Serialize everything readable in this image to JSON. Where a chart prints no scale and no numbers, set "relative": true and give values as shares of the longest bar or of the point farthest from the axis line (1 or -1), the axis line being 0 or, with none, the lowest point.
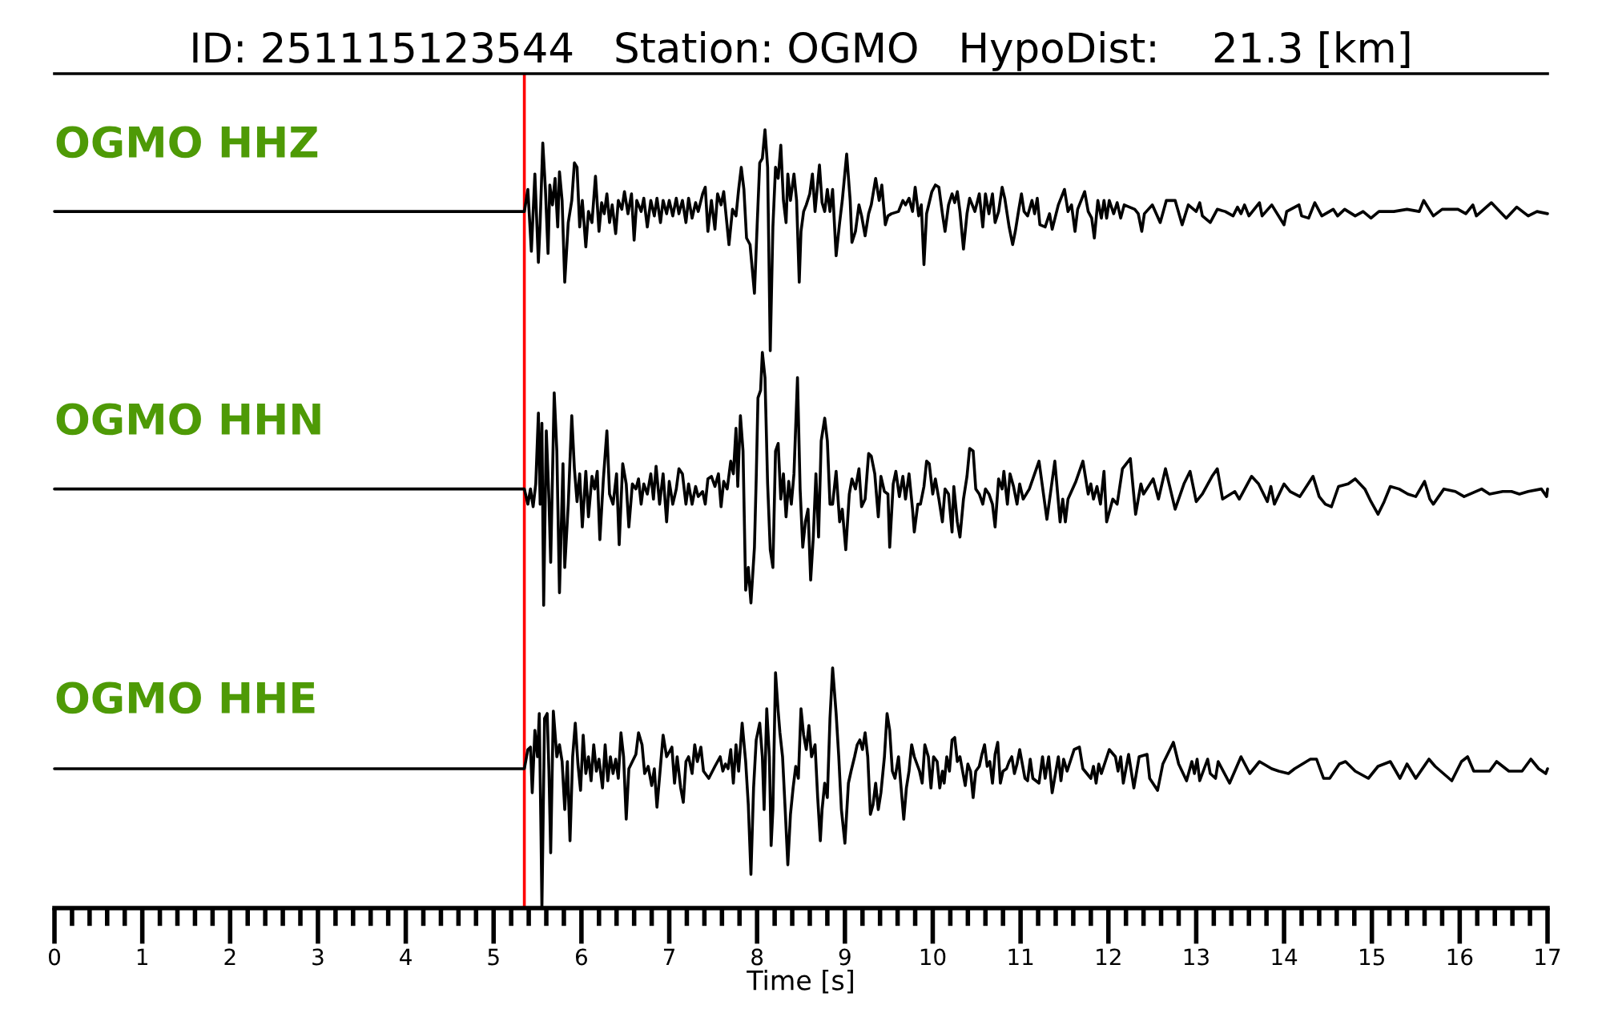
{
  "chart_data": [
    {
      "type": "line",
      "title": "ID: 251115123544   Station: OGMO   HypoDist:    21.3 [km]",
      "relative": true,
      "xlim": [
        0,
        17
      ],
      "tick_labels": false,
      "ref_lines": [
        {
          "axis": "x",
          "value": 5.35,
          "color": "#ff0000"
        }
      ],
      "series": [
        {
          "name": "OGMO HHZ",
          "color": "#000000",
          "x": [
            0,
            1.5,
            3,
            4.5,
            5.35,
            5.39,
            5.43,
            5.47,
            5.51,
            5.53,
            5.56,
            5.59,
            5.62,
            5.64,
            5.67,
            5.7,
            5.73,
            5.75,
            5.78,
            5.81,
            5.85,
            5.89,
            5.92,
            5.95,
            5.98,
            6.01,
            6.05,
            6.08,
            6.12,
            6.16,
            6.2,
            6.23,
            6.26,
            6.29,
            6.32,
            6.35,
            6.39,
            6.42,
            6.46,
            6.49,
            6.53,
            6.57,
            6.6,
            6.63,
            6.68,
            6.71,
            6.75,
            6.79,
            6.83,
            6.86,
            6.9,
            6.93,
            6.97,
            7.0,
            7.04,
            7.08,
            7.11,
            7.15,
            7.19,
            7.22,
            7.26,
            7.3,
            7.33,
            7.38,
            7.41,
            7.44,
            7.48,
            7.52,
            7.55,
            7.59,
            7.62,
            7.65,
            7.68,
            7.72,
            7.76,
            7.79,
            7.82,
            7.85,
            7.88,
            7.92,
            7.97,
            8.0,
            8.03,
            8.06,
            8.09,
            8.12,
            8.15,
            8.18,
            8.21,
            8.24,
            8.27,
            8.3,
            8.33,
            8.35,
            8.38,
            8.42,
            8.45,
            8.48,
            8.5,
            8.53,
            8.56,
            8.6,
            8.63,
            8.66,
            8.71,
            8.74,
            8.77,
            8.8,
            8.83,
            8.86,
            8.9,
            8.94,
            8.97,
            9.02,
            9.06,
            9.08,
            9.12,
            9.16,
            9.19,
            9.23,
            9.27,
            9.3,
            9.35,
            9.39,
            9.42,
            9.46,
            9.49,
            9.53,
            9.61,
            9.66,
            9.69,
            9.73,
            9.77,
            9.8,
            9.84,
            9.87,
            9.9,
            9.93,
            9.99,
            10.03,
            10.07,
            10.11,
            10.14,
            10.18,
            10.22,
            10.25,
            10.28,
            10.31,
            10.35,
            10.39,
            10.42,
            10.48,
            10.53,
            10.57,
            10.6,
            10.64,
            10.68,
            10.71,
            10.75,
            10.79,
            10.82,
            10.87,
            10.91,
            10.94,
            10.98,
            11.01,
            11.04,
            11.08,
            11.13,
            11.16,
            11.19,
            11.22,
            11.28,
            11.33,
            11.36,
            11.43,
            11.5,
            11.54,
            11.58,
            11.62,
            11.65,
            11.73,
            11.77,
            11.81,
            11.84,
            11.88,
            11.92,
            11.95,
            11.98,
            12.01,
            12.06,
            12.1,
            12.14,
            12.18,
            12.3,
            12.34,
            12.38,
            12.41,
            12.5,
            12.59,
            12.66,
            12.76,
            12.84,
            12.91,
            13.0,
            13.04,
            13.07,
            13.16,
            13.24,
            13.33,
            13.42,
            13.47,
            13.51,
            13.55,
            13.6,
            13.72,
            13.75,
            13.86,
            14.0,
            14.03,
            14.17,
            14.2,
            14.28,
            14.35,
            14.43,
            14.56,
            14.61,
            14.69,
            14.81,
            14.9,
            14.99,
            15.08,
            15.25,
            15.4,
            15.54,
            15.59,
            15.7,
            15.8,
            15.89,
            15.98,
            16.07,
            16.15,
            16.19,
            16.36,
            16.53,
            16.65,
            16.78,
            16.88,
            17.0
          ],
          "values": [
            0.63,
            0.63,
            0.63,
            0.63,
            0.63,
            0.73,
            0.45,
            0.8,
            0.4,
            0.58,
            0.94,
            0.73,
            0.44,
            0.75,
            0.66,
            0.78,
            0.56,
            0.81,
            0.68,
            0.31,
            0.58,
            0.68,
            0.85,
            0.83,
            0.56,
            0.68,
            0.47,
            0.63,
            0.58,
            0.79,
            0.54,
            0.67,
            0.62,
            0.71,
            0.58,
            0.66,
            0.53,
            0.68,
            0.64,
            0.72,
            0.62,
            0.71,
            0.5,
            0.68,
            0.63,
            0.69,
            0.56,
            0.68,
            0.61,
            0.69,
            0.58,
            0.68,
            0.62,
            0.68,
            0.61,
            0.69,
            0.62,
            0.68,
            0.58,
            0.69,
            0.6,
            0.67,
            0.63,
            0.71,
            0.74,
            0.54,
            0.68,
            0.55,
            0.71,
            0.66,
            0.72,
            0.6,
            0.48,
            0.64,
            0.61,
            0.73,
            0.83,
            0.73,
            0.51,
            0.48,
            0.26,
            0.56,
            0.85,
            0.87,
            1.0,
            0.83,
            0.0,
            0.56,
            0.83,
            0.78,
            0.93,
            0.68,
            0.58,
            0.8,
            0.68,
            0.8,
            0.68,
            0.31,
            0.54,
            0.63,
            0.66,
            0.71,
            0.8,
            0.63,
            0.84,
            0.67,
            0.63,
            0.73,
            0.63,
            0.73,
            0.43,
            0.58,
            0.68,
            0.89,
            0.68,
            0.49,
            0.54,
            0.66,
            0.61,
            0.52,
            0.62,
            0.66,
            0.78,
            0.68,
            0.75,
            0.57,
            0.61,
            0.62,
            0.63,
            0.68,
            0.66,
            0.69,
            0.63,
            0.74,
            0.61,
            0.66,
            0.39,
            0.62,
            0.72,
            0.75,
            0.74,
            0.62,
            0.54,
            0.66,
            0.71,
            0.67,
            0.72,
            0.63,
            0.46,
            0.62,
            0.69,
            0.63,
            0.71,
            0.56,
            0.71,
            0.62,
            0.71,
            0.58,
            0.63,
            0.74,
            0.69,
            0.56,
            0.48,
            0.54,
            0.64,
            0.71,
            0.63,
            0.61,
            0.68,
            0.62,
            0.69,
            0.57,
            0.56,
            0.62,
            0.55,
            0.66,
            0.73,
            0.63,
            0.66,
            0.54,
            0.64,
            0.72,
            0.63,
            0.6,
            0.51,
            0.68,
            0.6,
            0.68,
            0.6,
            0.68,
            0.62,
            0.67,
            0.6,
            0.66,
            0.64,
            0.62,
            0.54,
            0.62,
            0.66,
            0.58,
            0.68,
            0.68,
            0.57,
            0.66,
            0.63,
            0.67,
            0.61,
            0.58,
            0.64,
            0.63,
            0.61,
            0.65,
            0.62,
            0.66,
            0.61,
            0.67,
            0.61,
            0.66,
            0.57,
            0.63,
            0.66,
            0.61,
            0.6,
            0.67,
            0.61,
            0.64,
            0.61,
            0.64,
            0.61,
            0.63,
            0.6,
            0.63,
            0.63,
            0.64,
            0.63,
            0.68,
            0.61,
            0.64,
            0.64,
            0.64,
            0.62,
            0.66,
            0.61,
            0.67,
            0.6,
            0.65,
            0.61,
            0.63,
            0.62
          ]
        }
      ]
    },
    {
      "type": "line",
      "relative": true,
      "xlim": [
        0,
        17
      ],
      "tick_labels": false,
      "ref_lines": [
        {
          "axis": "x",
          "value": 5.35,
          "color": "#ff0000"
        }
      ],
      "series": [
        {
          "name": "OGMO HHN",
          "color": "#000000",
          "x": [
            0,
            1.5,
            3,
            4.5,
            5.35,
            5.39,
            5.42,
            5.45,
            5.48,
            5.51,
            5.53,
            5.55,
            5.57,
            5.6,
            5.63,
            5.65,
            5.69,
            5.72,
            5.75,
            5.79,
            5.81,
            5.85,
            5.89,
            5.92,
            5.95,
            5.98,
            6.01,
            6.05,
            6.08,
            6.12,
            6.15,
            6.18,
            6.21,
            6.25,
            6.29,
            6.32,
            6.36,
            6.4,
            6.43,
            6.47,
            6.51,
            6.54,
            6.58,
            6.62,
            6.65,
            6.68,
            6.71,
            6.75,
            6.79,
            6.82,
            6.85,
            6.89,
            6.93,
            6.97,
            7.0,
            7.04,
            7.08,
            7.11,
            7.15,
            7.19,
            7.22,
            7.26,
            7.3,
            7.33,
            7.38,
            7.41,
            7.44,
            7.48,
            7.52,
            7.56,
            7.59,
            7.62,
            7.66,
            7.7,
            7.73,
            7.76,
            7.78,
            7.81,
            7.84,
            7.87,
            7.9,
            7.93,
            7.97,
            7.99,
            8.01,
            8.04,
            8.06,
            8.09,
            8.12,
            8.15,
            8.18,
            8.21,
            8.24,
            8.27,
            8.3,
            8.33,
            8.36,
            8.39,
            8.42,
            8.46,
            8.49,
            8.52,
            8.55,
            8.58,
            8.61,
            8.64,
            8.67,
            8.7,
            8.73,
            8.77,
            8.8,
            8.83,
            8.86,
            8.9,
            8.94,
            8.97,
            9.01,
            9.05,
            9.08,
            9.12,
            9.16,
            9.19,
            9.23,
            9.27,
            9.3,
            9.34,
            9.38,
            9.41,
            9.45,
            9.49,
            9.51,
            9.55,
            9.58,
            9.62,
            9.66,
            9.69,
            9.73,
            9.77,
            9.79,
            9.83,
            9.86,
            9.9,
            9.93,
            9.96,
            10.0,
            10.03,
            10.07,
            10.11,
            10.14,
            10.18,
            10.22,
            10.24,
            10.28,
            10.31,
            10.35,
            10.39,
            10.42,
            10.46,
            10.49,
            10.53,
            10.57,
            10.6,
            10.64,
            10.68,
            10.71,
            10.75,
            10.79,
            10.81,
            10.85,
            10.88,
            10.92,
            10.96,
            10.99,
            11.03,
            11.1,
            11.21,
            11.3,
            11.39,
            11.45,
            11.48,
            11.51,
            11.54,
            11.63,
            11.71,
            11.77,
            11.8,
            11.83,
            11.87,
            11.91,
            11.95,
            11.98,
            12.05,
            12.1,
            12.16,
            12.25,
            12.31,
            12.37,
            12.4,
            12.51,
            12.57,
            12.65,
            12.76,
            12.86,
            12.93,
            13.0,
            13.07,
            13.18,
            13.24,
            13.3,
            13.44,
            13.49,
            13.63,
            13.71,
            13.81,
            13.85,
            13.89,
            14.0,
            14.07,
            14.18,
            14.33,
            14.4,
            14.47,
            14.54,
            14.62,
            14.73,
            14.81,
            14.92,
            14.99,
            15.07,
            15.14,
            15.21,
            15.31,
            15.41,
            15.5,
            15.6,
            15.66,
            15.7,
            15.82,
            15.95,
            16.05,
            16.25,
            16.34,
            16.49,
            16.59,
            16.68,
            16.78,
            16.93,
            16.99,
            17.0
          ],
          "values": [
            0.46,
            0.46,
            0.46,
            0.46,
            0.46,
            0.4,
            0.46,
            0.39,
            0.48,
            0.76,
            0.4,
            0.72,
            0.0,
            0.69,
            0.42,
            0.17,
            0.84,
            0.61,
            0.05,
            0.56,
            0.15,
            0.4,
            0.75,
            0.54,
            0.41,
            0.52,
            0.31,
            0.53,
            0.35,
            0.51,
            0.46,
            0.53,
            0.26,
            0.5,
            0.69,
            0.44,
            0.4,
            0.52,
            0.24,
            0.56,
            0.48,
            0.31,
            0.48,
            0.46,
            0.5,
            0.4,
            0.48,
            0.44,
            0.52,
            0.42,
            0.55,
            0.4,
            0.52,
            0.33,
            0.49,
            0.4,
            0.46,
            0.54,
            0.52,
            0.4,
            0.48,
            0.4,
            0.47,
            0.43,
            0.45,
            0.4,
            0.5,
            0.51,
            0.47,
            0.52,
            0.39,
            0.49,
            0.46,
            0.57,
            0.52,
            0.7,
            0.47,
            0.75,
            0.61,
            0.06,
            0.15,
            0.01,
            0.23,
            0.5,
            0.82,
            0.85,
            1.0,
            0.9,
            0.48,
            0.22,
            0.15,
            0.61,
            0.64,
            0.42,
            0.52,
            0.35,
            0.49,
            0.4,
            0.52,
            0.9,
            0.46,
            0.23,
            0.33,
            0.38,
            0.1,
            0.27,
            0.52,
            0.27,
            0.65,
            0.74,
            0.65,
            0.4,
            0.4,
            0.53,
            0.33,
            0.38,
            0.22,
            0.44,
            0.5,
            0.46,
            0.54,
            0.39,
            0.42,
            0.6,
            0.59,
            0.52,
            0.35,
            0.51,
            0.45,
            0.44,
            0.23,
            0.48,
            0.53,
            0.43,
            0.51,
            0.42,
            0.52,
            0.38,
            0.29,
            0.4,
            0.4,
            0.47,
            0.57,
            0.56,
            0.44,
            0.5,
            0.42,
            0.33,
            0.46,
            0.44,
            0.29,
            0.47,
            0.33,
            0.27,
            0.42,
            0.51,
            0.62,
            0.61,
            0.46,
            0.44,
            0.4,
            0.46,
            0.44,
            0.4,
            0.31,
            0.5,
            0.46,
            0.53,
            0.4,
            0.52,
            0.47,
            0.4,
            0.48,
            0.42,
            0.46,
            0.57,
            0.34,
            0.57,
            0.33,
            0.42,
            0.33,
            0.42,
            0.49,
            0.57,
            0.44,
            0.48,
            0.42,
            0.47,
            0.4,
            0.53,
            0.33,
            0.42,
            0.4,
            0.54,
            0.58,
            0.36,
            0.48,
            0.44,
            0.5,
            0.42,
            0.54,
            0.38,
            0.48,
            0.53,
            0.41,
            0.44,
            0.51,
            0.54,
            0.42,
            0.45,
            0.42,
            0.51,
            0.48,
            0.41,
            0.47,
            0.4,
            0.48,
            0.45,
            0.43,
            0.51,
            0.43,
            0.4,
            0.39,
            0.47,
            0.48,
            0.5,
            0.46,
            0.41,
            0.36,
            0.41,
            0.47,
            0.46,
            0.44,
            0.43,
            0.49,
            0.42,
            0.4,
            0.46,
            0.45,
            0.43,
            0.46,
            0.44,
            0.45,
            0.45,
            0.44,
            0.45,
            0.46,
            0.43,
            0.46
          ]
        }
      ]
    },
    {
      "type": "line",
      "relative": true,
      "xlim": [
        0,
        17
      ],
      "tick_labels": "x",
      "xlabel": "Time [s]",
      "xticks": [
        0,
        {
          "value": 0.2,
          "label": null
        },
        {
          "value": 0.4,
          "label": null
        },
        {
          "value": 0.6,
          "label": null
        },
        {
          "value": 0.8,
          "label": null
        },
        1,
        {
          "value": 1.2,
          "label": null
        },
        {
          "value": 1.4,
          "label": null
        },
        {
          "value": 1.6,
          "label": null
        },
        {
          "value": 1.8,
          "label": null
        },
        2,
        {
          "value": 2.2,
          "label": null
        },
        {
          "value": 2.4,
          "label": null
        },
        {
          "value": 2.6,
          "label": null
        },
        {
          "value": 2.8,
          "label": null
        },
        3,
        {
          "value": 3.2,
          "label": null
        },
        {
          "value": 3.4,
          "label": null
        },
        {
          "value": 3.6,
          "label": null
        },
        {
          "value": 3.8,
          "label": null
        },
        4,
        {
          "value": 4.2,
          "label": null
        },
        {
          "value": 4.4,
          "label": null
        },
        {
          "value": 4.6,
          "label": null
        },
        {
          "value": 4.8,
          "label": null
        },
        5,
        {
          "value": 5.2,
          "label": null
        },
        {
          "value": 5.4,
          "label": null
        },
        {
          "value": 5.6,
          "label": null
        },
        {
          "value": 5.8,
          "label": null
        },
        6,
        {
          "value": 6.2,
          "label": null
        },
        {
          "value": 6.4,
          "label": null
        },
        {
          "value": 6.6,
          "label": null
        },
        {
          "value": 6.8,
          "label": null
        },
        7,
        {
          "value": 7.2,
          "label": null
        },
        {
          "value": 7.4,
          "label": null
        },
        {
          "value": 7.6,
          "label": null
        },
        {
          "value": 7.8,
          "label": null
        },
        8,
        {
          "value": 8.2,
          "label": null
        },
        {
          "value": 8.4,
          "label": null
        },
        {
          "value": 8.6,
          "label": null
        },
        {
          "value": 8.8,
          "label": null
        },
        9,
        {
          "value": 9.2,
          "label": null
        },
        {
          "value": 9.4,
          "label": null
        },
        {
          "value": 9.6,
          "label": null
        },
        {
          "value": 9.8,
          "label": null
        },
        10,
        {
          "value": 10.2,
          "label": null
        },
        {
          "value": 10.4,
          "label": null
        },
        {
          "value": 10.6,
          "label": null
        },
        {
          "value": 10.8,
          "label": null
        },
        11,
        {
          "value": 11.2,
          "label": null
        },
        {
          "value": 11.4,
          "label": null
        },
        {
          "value": 11.6,
          "label": null
        },
        {
          "value": 11.8,
          "label": null
        },
        12,
        {
          "value": 12.2,
          "label": null
        },
        {
          "value": 12.4,
          "label": null
        },
        {
          "value": 12.6,
          "label": null
        },
        {
          "value": 12.8,
          "label": null
        },
        13,
        {
          "value": 13.2,
          "label": null
        },
        {
          "value": 13.4,
          "label": null
        },
        {
          "value": 13.6,
          "label": null
        },
        {
          "value": 13.8,
          "label": null
        },
        14,
        {
          "value": 14.2,
          "label": null
        },
        {
          "value": 14.4,
          "label": null
        },
        {
          "value": 14.6,
          "label": null
        },
        {
          "value": 14.8,
          "label": null
        },
        15,
        {
          "value": 15.2,
          "label": null
        },
        {
          "value": 15.4,
          "label": null
        },
        {
          "value": 15.6,
          "label": null
        },
        {
          "value": 15.8,
          "label": null
        },
        16,
        {
          "value": 16.2,
          "label": null
        },
        {
          "value": 16.4,
          "label": null
        },
        {
          "value": 16.6,
          "label": null
        },
        {
          "value": 16.8,
          "label": null
        },
        17
      ],
      "ref_lines": [
        {
          "axis": "x",
          "value": 5.35,
          "color": "#ff0000"
        }
      ],
      "series": [
        {
          "name": "OGMO HHE",
          "color": "#000000",
          "x": [
            0,
            1.5,
            3,
            4.5,
            5.35,
            5.39,
            5.42,
            5.44,
            5.47,
            5.5,
            5.52,
            5.54,
            5.55,
            5.58,
            5.61,
            5.63,
            5.65,
            5.68,
            5.72,
            5.75,
            5.78,
            5.81,
            5.84,
            5.87,
            5.9,
            5.93,
            5.96,
            5.99,
            6.02,
            6.05,
            6.08,
            6.11,
            6.14,
            6.17,
            6.2,
            6.24,
            6.27,
            6.3,
            6.33,
            6.36,
            6.39,
            6.42,
            6.45,
            6.48,
            6.51,
            6.54,
            6.62,
            6.65,
            6.69,
            6.72,
            6.76,
            6.8,
            6.83,
            6.86,
            6.9,
            6.93,
            6.97,
            7.03,
            7.06,
            7.09,
            7.13,
            7.16,
            7.19,
            7.22,
            7.26,
            7.29,
            7.32,
            7.36,
            7.39,
            7.45,
            7.52,
            7.58,
            7.61,
            7.64,
            7.67,
            7.7,
            7.73,
            7.76,
            7.79,
            7.83,
            7.87,
            7.9,
            7.93,
            7.96,
            7.99,
            8.03,
            8.06,
            8.08,
            8.11,
            8.14,
            8.16,
            8.18,
            8.21,
            8.24,
            8.26,
            8.29,
            8.32,
            8.35,
            8.38,
            8.41,
            8.44,
            8.47,
            8.5,
            8.53,
            8.56,
            8.59,
            8.62,
            8.66,
            8.69,
            8.72,
            8.74,
            8.77,
            8.8,
            8.83,
            8.86,
            8.9,
            8.93,
            8.96,
            9.0,
            9.04,
            9.07,
            9.11,
            9.14,
            9.17,
            9.2,
            9.23,
            9.26,
            9.29,
            9.32,
            9.35,
            9.38,
            9.41,
            9.45,
            9.48,
            9.51,
            9.54,
            9.57,
            9.61,
            9.64,
            9.67,
            9.7,
            9.73,
            9.76,
            9.79,
            9.85,
            9.88,
            9.91,
            9.95,
            9.98,
            10.01,
            10.05,
            10.08,
            10.11,
            10.13,
            10.16,
            10.19,
            10.22,
            10.25,
            10.28,
            10.31,
            10.34,
            10.37,
            10.4,
            10.43,
            10.46,
            10.49,
            10.53,
            10.56,
            10.59,
            10.62,
            10.65,
            10.68,
            10.71,
            10.74,
            10.77,
            10.8,
            10.84,
            10.87,
            10.9,
            10.93,
            10.96,
            10.99,
            11.02,
            11.05,
            11.08,
            11.11,
            11.14,
            11.21,
            11.25,
            11.28,
            11.32,
            11.36,
            11.43,
            11.46,
            11.49,
            11.53,
            11.61,
            11.67,
            11.71,
            11.8,
            11.83,
            11.86,
            11.89,
            11.92,
            12.01,
            12.08,
            12.11,
            12.14,
            12.17,
            12.23,
            12.29,
            12.35,
            12.44,
            12.47,
            12.56,
            12.62,
            12.74,
            12.8,
            12.89,
            12.95,
            12.98,
            13.01,
            13.04,
            13.13,
            13.16,
            13.22,
            13.25,
            13.38,
            13.51,
            13.61,
            13.72,
            13.86,
            13.94,
            14.05,
            14.12,
            14.3,
            14.37,
            14.45,
            14.52,
            14.63,
            14.7,
            14.81,
            14.96,
            15.07,
            15.21,
            15.32,
            15.4,
            15.5,
            15.65,
            15.72,
            15.91,
            16.02,
            16.09,
            16.16,
            16.34,
            16.42,
            16.56,
            16.71,
            16.81,
            16.9,
            16.98,
            17.0
          ],
          "values": [
            0.58,
            0.58,
            0.58,
            0.58,
            0.58,
            0.66,
            0.67,
            0.48,
            0.74,
            0.63,
            0.81,
            0.3,
            0.0,
            0.79,
            0.81,
            0.57,
            0.23,
            0.82,
            0.63,
            0.68,
            0.61,
            0.41,
            0.61,
            0.28,
            0.63,
            0.77,
            0.6,
            0.49,
            0.72,
            0.56,
            0.63,
            0.53,
            0.68,
            0.57,
            0.62,
            0.5,
            0.68,
            0.53,
            0.63,
            0.56,
            0.62,
            0.54,
            0.73,
            0.63,
            0.37,
            0.58,
            0.64,
            0.73,
            0.68,
            0.56,
            0.59,
            0.51,
            0.58,
            0.42,
            0.59,
            0.72,
            0.63,
            0.67,
            0.52,
            0.63,
            0.5,
            0.44,
            0.61,
            0.63,
            0.56,
            0.68,
            0.61,
            0.67,
            0.57,
            0.54,
            0.59,
            0.63,
            0.57,
            0.6,
            0.58,
            0.66,
            0.52,
            0.68,
            0.57,
            0.77,
            0.61,
            0.43,
            0.14,
            0.5,
            0.7,
            0.77,
            0.63,
            0.41,
            0.83,
            0.63,
            0.26,
            0.41,
            0.98,
            0.82,
            0.73,
            0.63,
            0.41,
            0.18,
            0.39,
            0.5,
            0.59,
            0.54,
            0.83,
            0.72,
            0.66,
            0.76,
            0.63,
            0.68,
            0.46,
            0.28,
            0.41,
            0.52,
            0.46,
            0.79,
            1.0,
            0.81,
            0.63,
            0.41,
            0.27,
            0.52,
            0.57,
            0.63,
            0.68,
            0.7,
            0.66,
            0.73,
            0.63,
            0.39,
            0.43,
            0.52,
            0.41,
            0.48,
            0.63,
            0.81,
            0.74,
            0.57,
            0.54,
            0.63,
            0.5,
            0.37,
            0.5,
            0.57,
            0.68,
            0.63,
            0.57,
            0.52,
            0.68,
            0.63,
            0.5,
            0.63,
            0.61,
            0.5,
            0.57,
            0.52,
            0.63,
            0.57,
            0.7,
            0.71,
            0.61,
            0.63,
            0.57,
            0.51,
            0.6,
            0.57,
            0.46,
            0.57,
            0.59,
            0.64,
            0.68,
            0.59,
            0.61,
            0.52,
            0.64,
            0.69,
            0.52,
            0.57,
            0.58,
            0.61,
            0.63,
            0.56,
            0.6,
            0.66,
            0.6,
            0.54,
            0.53,
            0.62,
            0.54,
            0.52,
            0.63,
            0.54,
            0.63,
            0.48,
            0.63,
            0.53,
            0.62,
            0.57,
            0.66,
            0.67,
            0.58,
            0.54,
            0.59,
            0.52,
            0.6,
            0.56,
            0.66,
            0.63,
            0.57,
            0.63,
            0.52,
            0.64,
            0.5,
            0.63,
            0.64,
            0.54,
            0.49,
            0.6,
            0.69,
            0.6,
            0.53,
            0.61,
            0.56,
            0.62,
            0.53,
            0.62,
            0.56,
            0.54,
            0.61,
            0.52,
            0.63,
            0.56,
            0.61,
            0.58,
            0.57,
            0.56,
            0.58,
            0.62,
            0.62,
            0.54,
            0.54,
            0.6,
            0.61,
            0.57,
            0.54,
            0.59,
            0.61,
            0.54,
            0.6,
            0.54,
            0.62,
            0.59,
            0.53,
            0.61,
            0.63,
            0.57,
            0.57,
            0.61,
            0.57,
            0.57,
            0.62,
            0.58,
            0.56,
            0.58
          ]
        }
      ]
    }
  ]
}
